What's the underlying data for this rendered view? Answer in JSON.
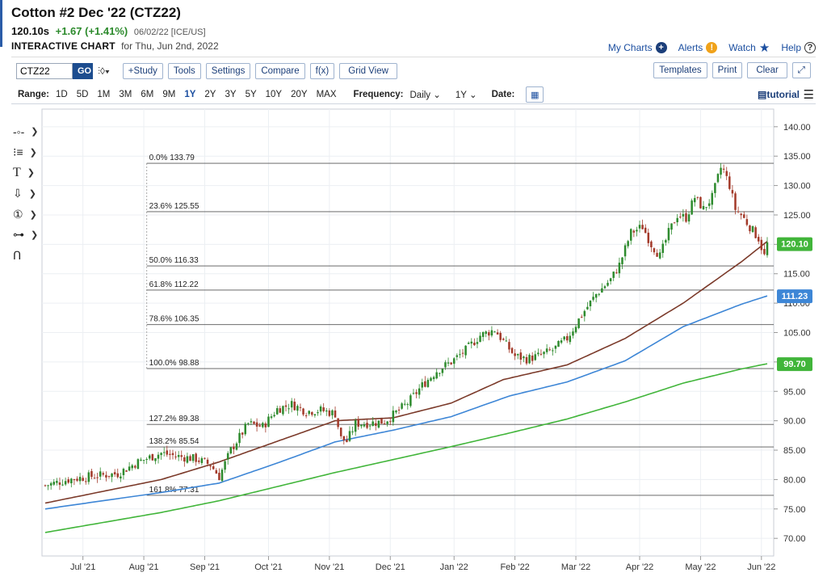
{
  "header": {
    "title": "Cotton #2 Dec '22 (CTZ22)",
    "last": "120.10s",
    "change": "+1.67 (+1.41%)",
    "meta": "06/02/22 [ICE/US]",
    "subtitle": "INTERACTIVE CHART",
    "subdate": "for Thu, Jun 2nd, 2022"
  },
  "links": {
    "my_charts": "My Charts",
    "alerts": "Alerts",
    "watch": "Watch",
    "help": "Help"
  },
  "toolbar": {
    "symbol_value": "CTZ22",
    "go": "GO",
    "study": "+Study",
    "tools": "Tools",
    "settings": "Settings",
    "compare": "Compare",
    "fx": "f(x)",
    "grid_view": "Grid View",
    "templates": "Templates",
    "print": "Print",
    "clear": "Clear",
    "expand_icon": "expand-icon"
  },
  "rangebar": {
    "label": "Range:",
    "ranges": [
      "1D",
      "5D",
      "1M",
      "3M",
      "6M",
      "9M",
      "1Y",
      "2Y",
      "3Y",
      "5Y",
      "10Y",
      "20Y",
      "MAX"
    ],
    "active": "1Y",
    "freq_label": "Frequency:",
    "freq_value": "Daily",
    "period_value": "1Y",
    "date_label": "Date:",
    "tutorial": "tutorial"
  },
  "side_tools": [
    "crosshair-icon",
    "list-icon",
    "text-icon",
    "arrow-down-icon",
    "counter-icon",
    "indicator-icon",
    "magnet-icon"
  ],
  "colors": {
    "up": "#2e8b2e",
    "down": "#a33a2a",
    "ma_short": "#7b3a2a",
    "ma_mid": "#3d86d6",
    "ma_long": "#41b53a",
    "link": "#1c4fa0"
  },
  "chart_data": {
    "type": "candlestick",
    "x_ticks": [
      "Jul '21",
      "Aug '21",
      "Sep '21",
      "Oct '21",
      "Nov '21",
      "Dec '21",
      "Jan '22",
      "Feb '22",
      "Mar '22",
      "Apr '22",
      "May '22",
      "Jun '22"
    ],
    "ylim": [
      67,
      143
    ],
    "y_ticks": [
      "140.00",
      "135.00",
      "130.00",
      "125.00",
      "120.00",
      "115.00",
      "110.00",
      "105.00",
      "100.00",
      "95.00",
      "90.00",
      "85.00",
      "80.00",
      "75.00",
      "70.00"
    ],
    "price_path": [
      [
        0,
        79
      ],
      [
        8,
        80
      ],
      [
        15,
        80.5
      ],
      [
        25,
        81
      ],
      [
        32,
        83
      ],
      [
        40,
        84.5
      ],
      [
        45,
        84
      ],
      [
        52,
        83.5
      ],
      [
        57,
        82.5
      ],
      [
        60,
        80.5
      ],
      [
        64,
        85
      ],
      [
        70,
        89.5
      ],
      [
        75,
        89
      ],
      [
        80,
        92
      ],
      [
        85,
        92.8
      ],
      [
        90,
        91.6
      ],
      [
        95,
        91.8
      ],
      [
        100,
        91.2
      ],
      [
        102,
        87
      ],
      [
        104,
        86.5
      ],
      [
        107,
        89.5
      ],
      [
        112,
        89.6
      ],
      [
        117,
        89.9
      ],
      [
        120,
        91
      ],
      [
        125,
        93
      ],
      [
        130,
        96
      ],
      [
        135,
        98.5
      ],
      [
        140,
        100
      ],
      [
        145,
        102
      ],
      [
        150,
        104.5
      ],
      [
        155,
        105.5
      ],
      [
        158,
        103.5
      ],
      [
        162,
        101
      ],
      [
        166,
        100.5
      ],
      [
        170,
        101
      ],
      [
        175,
        102
      ],
      [
        180,
        104
      ],
      [
        185,
        108
      ],
      [
        190,
        111.5
      ],
      [
        195,
        114
      ],
      [
        198,
        116.5
      ],
      [
        202,
        122
      ],
      [
        206,
        123
      ],
      [
        209,
        120
      ],
      [
        212,
        118
      ],
      [
        215,
        122
      ],
      [
        218,
        125
      ],
      [
        221,
        124.5
      ],
      [
        224,
        128
      ],
      [
        227,
        126
      ],
      [
        230,
        128
      ],
      [
        233,
        133
      ],
      [
        234,
        132.5
      ],
      [
        236,
        130
      ],
      [
        238,
        126
      ],
      [
        240,
        125
      ],
      [
        243,
        123
      ],
      [
        246,
        121
      ],
      [
        248,
        118
      ],
      [
        249,
        120.1
      ]
    ],
    "fibonacci": [
      {
        "label": "0.0% 133.79",
        "value": 133.79
      },
      {
        "label": "23.6% 125.55",
        "value": 125.55
      },
      {
        "label": "50.0% 116.33",
        "value": 116.33
      },
      {
        "label": "61.8% 112.22",
        "value": 112.22
      },
      {
        "label": "78.6% 106.35",
        "value": 106.35
      },
      {
        "label": "100.0% 98.88",
        "value": 98.88
      },
      {
        "label": "127.2% 89.38",
        "value": 89.38
      },
      {
        "label": "138.2% 85.54",
        "value": 85.54
      },
      {
        "label": "161.8% 77.31",
        "value": 77.31
      }
    ],
    "ma_short": [
      [
        0,
        76
      ],
      [
        40,
        80
      ],
      [
        60,
        83
      ],
      [
        80,
        86.5
      ],
      [
        100,
        90
      ],
      [
        120,
        90.5
      ],
      [
        140,
        93
      ],
      [
        158,
        97
      ],
      [
        180,
        99.5
      ],
      [
        200,
        104
      ],
      [
        220,
        110
      ],
      [
        240,
        117
      ],
      [
        249,
        120.5
      ]
    ],
    "ma_mid": [
      [
        0,
        75
      ],
      [
        40,
        77.8
      ],
      [
        60,
        79.4
      ],
      [
        80,
        82.8
      ],
      [
        100,
        86.4
      ],
      [
        120,
        88.4
      ],
      [
        140,
        90.7
      ],
      [
        160,
        94.2
      ],
      [
        180,
        96.6
      ],
      [
        200,
        100.2
      ],
      [
        220,
        106
      ],
      [
        240,
        109.8
      ],
      [
        249,
        111.23
      ]
    ],
    "ma_long": [
      [
        0,
        71
      ],
      [
        40,
        74.4
      ],
      [
        60,
        76.4
      ],
      [
        80,
        78.8
      ],
      [
        100,
        81.2
      ],
      [
        120,
        83.4
      ],
      [
        140,
        85.6
      ],
      [
        160,
        87.9
      ],
      [
        180,
        90.3
      ],
      [
        200,
        93.2
      ],
      [
        220,
        96.4
      ],
      [
        240,
        98.8
      ],
      [
        249,
        99.7
      ]
    ],
    "price_labels": [
      {
        "text": "120.10",
        "value": 120.1,
        "color": "#41b53a"
      },
      {
        "text": "111.23",
        "value": 111.23,
        "color": "#3d86d6"
      },
      {
        "text": "99.70",
        "value": 99.7,
        "color": "#41b53a"
      }
    ]
  }
}
